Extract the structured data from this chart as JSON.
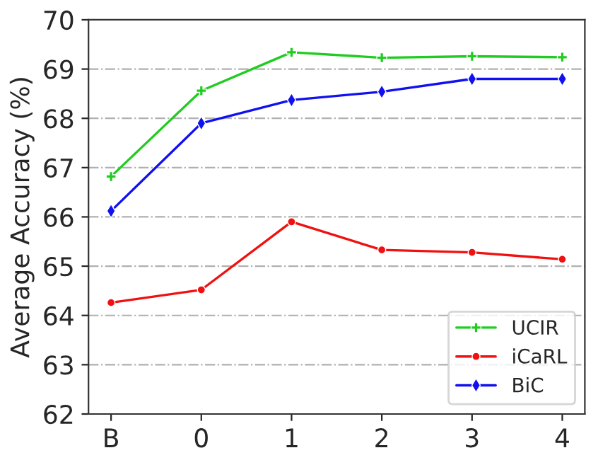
{
  "chart_data": {
    "type": "line",
    "ylabel": "Average Accuracy (%)",
    "categories": [
      "B",
      "0",
      "1",
      "2",
      "3",
      "4"
    ],
    "series": [
      {
        "name": "UCIR",
        "color": "#1fcc1f",
        "marker": "cross",
        "values": [
          66.82,
          68.56,
          69.34,
          69.23,
          69.26,
          69.24
        ]
      },
      {
        "name": "iCaRL",
        "color": "#f01010",
        "marker": "circle",
        "values": [
          64.26,
          64.52,
          65.9,
          65.33,
          65.28,
          65.14
        ]
      },
      {
        "name": "BiC",
        "color": "#1010f0",
        "marker": "diamond",
        "values": [
          66.12,
          67.9,
          68.37,
          68.54,
          68.8,
          68.8
        ]
      }
    ],
    "ylim": [
      62,
      70
    ],
    "yticks": [
      62,
      63,
      64,
      65,
      66,
      67,
      68,
      69,
      70
    ],
    "grid": "y",
    "legend": "bottom right",
    "line_style": "solid"
  }
}
